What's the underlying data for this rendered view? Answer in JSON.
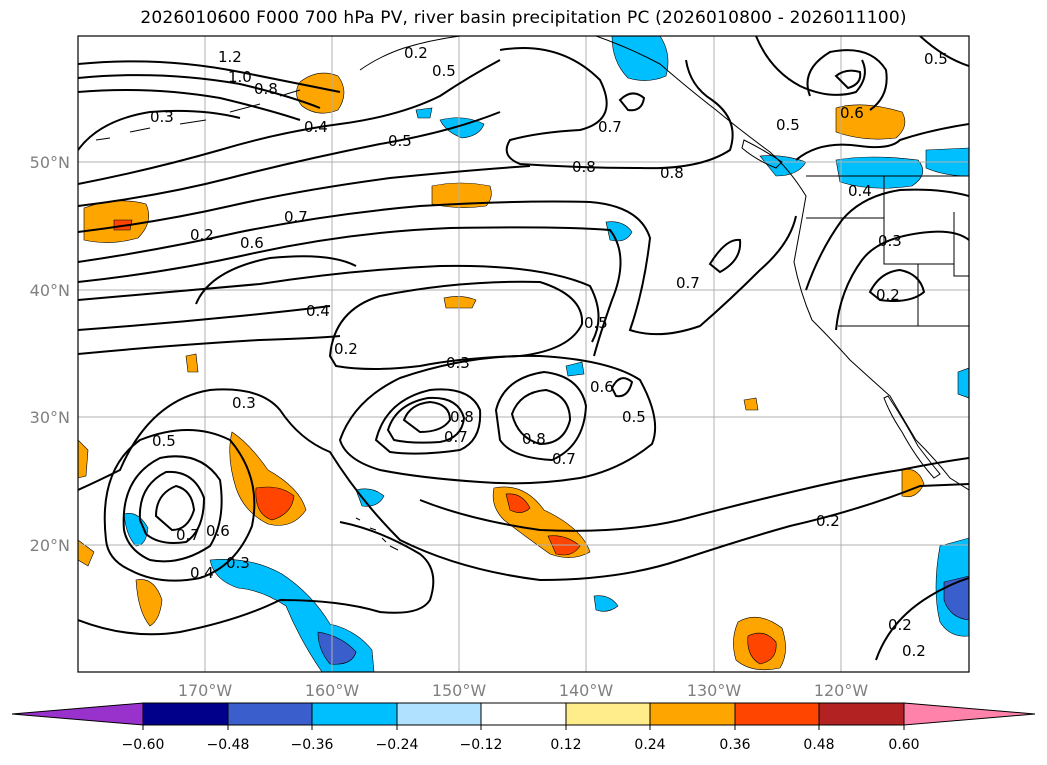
{
  "title": "2026010600 F000 700 hPa PV, river basin precipitation PC (2026010800 - 2026011100)",
  "lat_labels": [
    "50°N",
    "40°N",
    "30°N",
    "20°N"
  ],
  "lon_labels": [
    "170°W",
    "160°W",
    "150°W",
    "140°W",
    "130°W",
    "120°W"
  ],
  "contour_labels": [
    "1.2",
    "1.0",
    "0.8",
    "0.5",
    "0.3",
    "0.4",
    "0.5",
    "0.2",
    "0.6",
    "0.7",
    "0.4",
    "0.2",
    "0.3",
    "0.8",
    "0.8",
    "0.7",
    "0.7",
    "0.5",
    "0.3",
    "0.8",
    "0.7",
    "0.8",
    "0.7",
    "0.6",
    "0.5",
    "0.5",
    "0.7",
    "0.6",
    "0.4",
    "0.3",
    "0.2",
    "0.5",
    "0.6",
    "0.5",
    "0.4",
    "0.3",
    "0.2",
    "0.2",
    "0.2",
    "0.2"
  ],
  "colorbar": {
    "ticks": [
      "−0.60",
      "−0.48",
      "−0.36",
      "−0.24",
      "−0.12",
      "0.12",
      "0.24",
      "0.36",
      "0.48",
      "0.60"
    ],
    "colors": [
      "#9932cc",
      "#00008b",
      "#3a5fcd",
      "#00bfff",
      "#b0e2ff",
      "#ffffff",
      "#ffec8b",
      "#ffa500",
      "#ff4500",
      "#b22222",
      "#ff82ab"
    ],
    "extend": "both"
  },
  "map": {
    "lat_range": [
      10,
      60
    ],
    "lon_range": [
      -180,
      -110
    ],
    "grid": true
  }
}
